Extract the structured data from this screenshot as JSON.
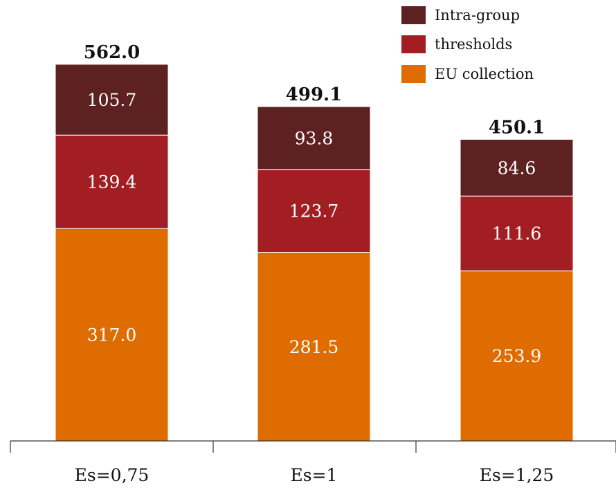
{
  "chart_data": {
    "type": "bar",
    "stacked": true,
    "categories": [
      "Es=0,75",
      "Es=1",
      "Es=1,25"
    ],
    "series": [
      {
        "name": "EU collection",
        "values": [
          317.0,
          281.5,
          253.9
        ],
        "color": "#DE6C00"
      },
      {
        "name": "thresholds",
        "values": [
          139.4,
          123.7,
          111.6
        ],
        "color": "#A31E22"
      },
      {
        "name": "Intra-group",
        "values": [
          105.7,
          93.8,
          84.6
        ],
        "color": "#5E2121"
      }
    ],
    "totals": [
      562.0,
      499.1,
      450.1
    ],
    "value_labels": [
      [
        "317.0",
        "281.5",
        "253.9"
      ],
      [
        "139.4",
        "123.7",
        "111.6"
      ],
      [
        "105.7",
        "93.8",
        "84.6"
      ]
    ],
    "total_labels": [
      "562.0",
      "499.1",
      "450.1"
    ],
    "legend": [
      "Intra-group",
      "thresholds",
      "EU collection"
    ],
    "legend_colors": [
      "#5E2121",
      "#A31E22",
      "#DE6C00"
    ],
    "legend_position": "top-right",
    "title": "",
    "xlabel": "",
    "ylabel": "",
    "ylim": [
      0,
      562.0
    ],
    "grid": false
  }
}
